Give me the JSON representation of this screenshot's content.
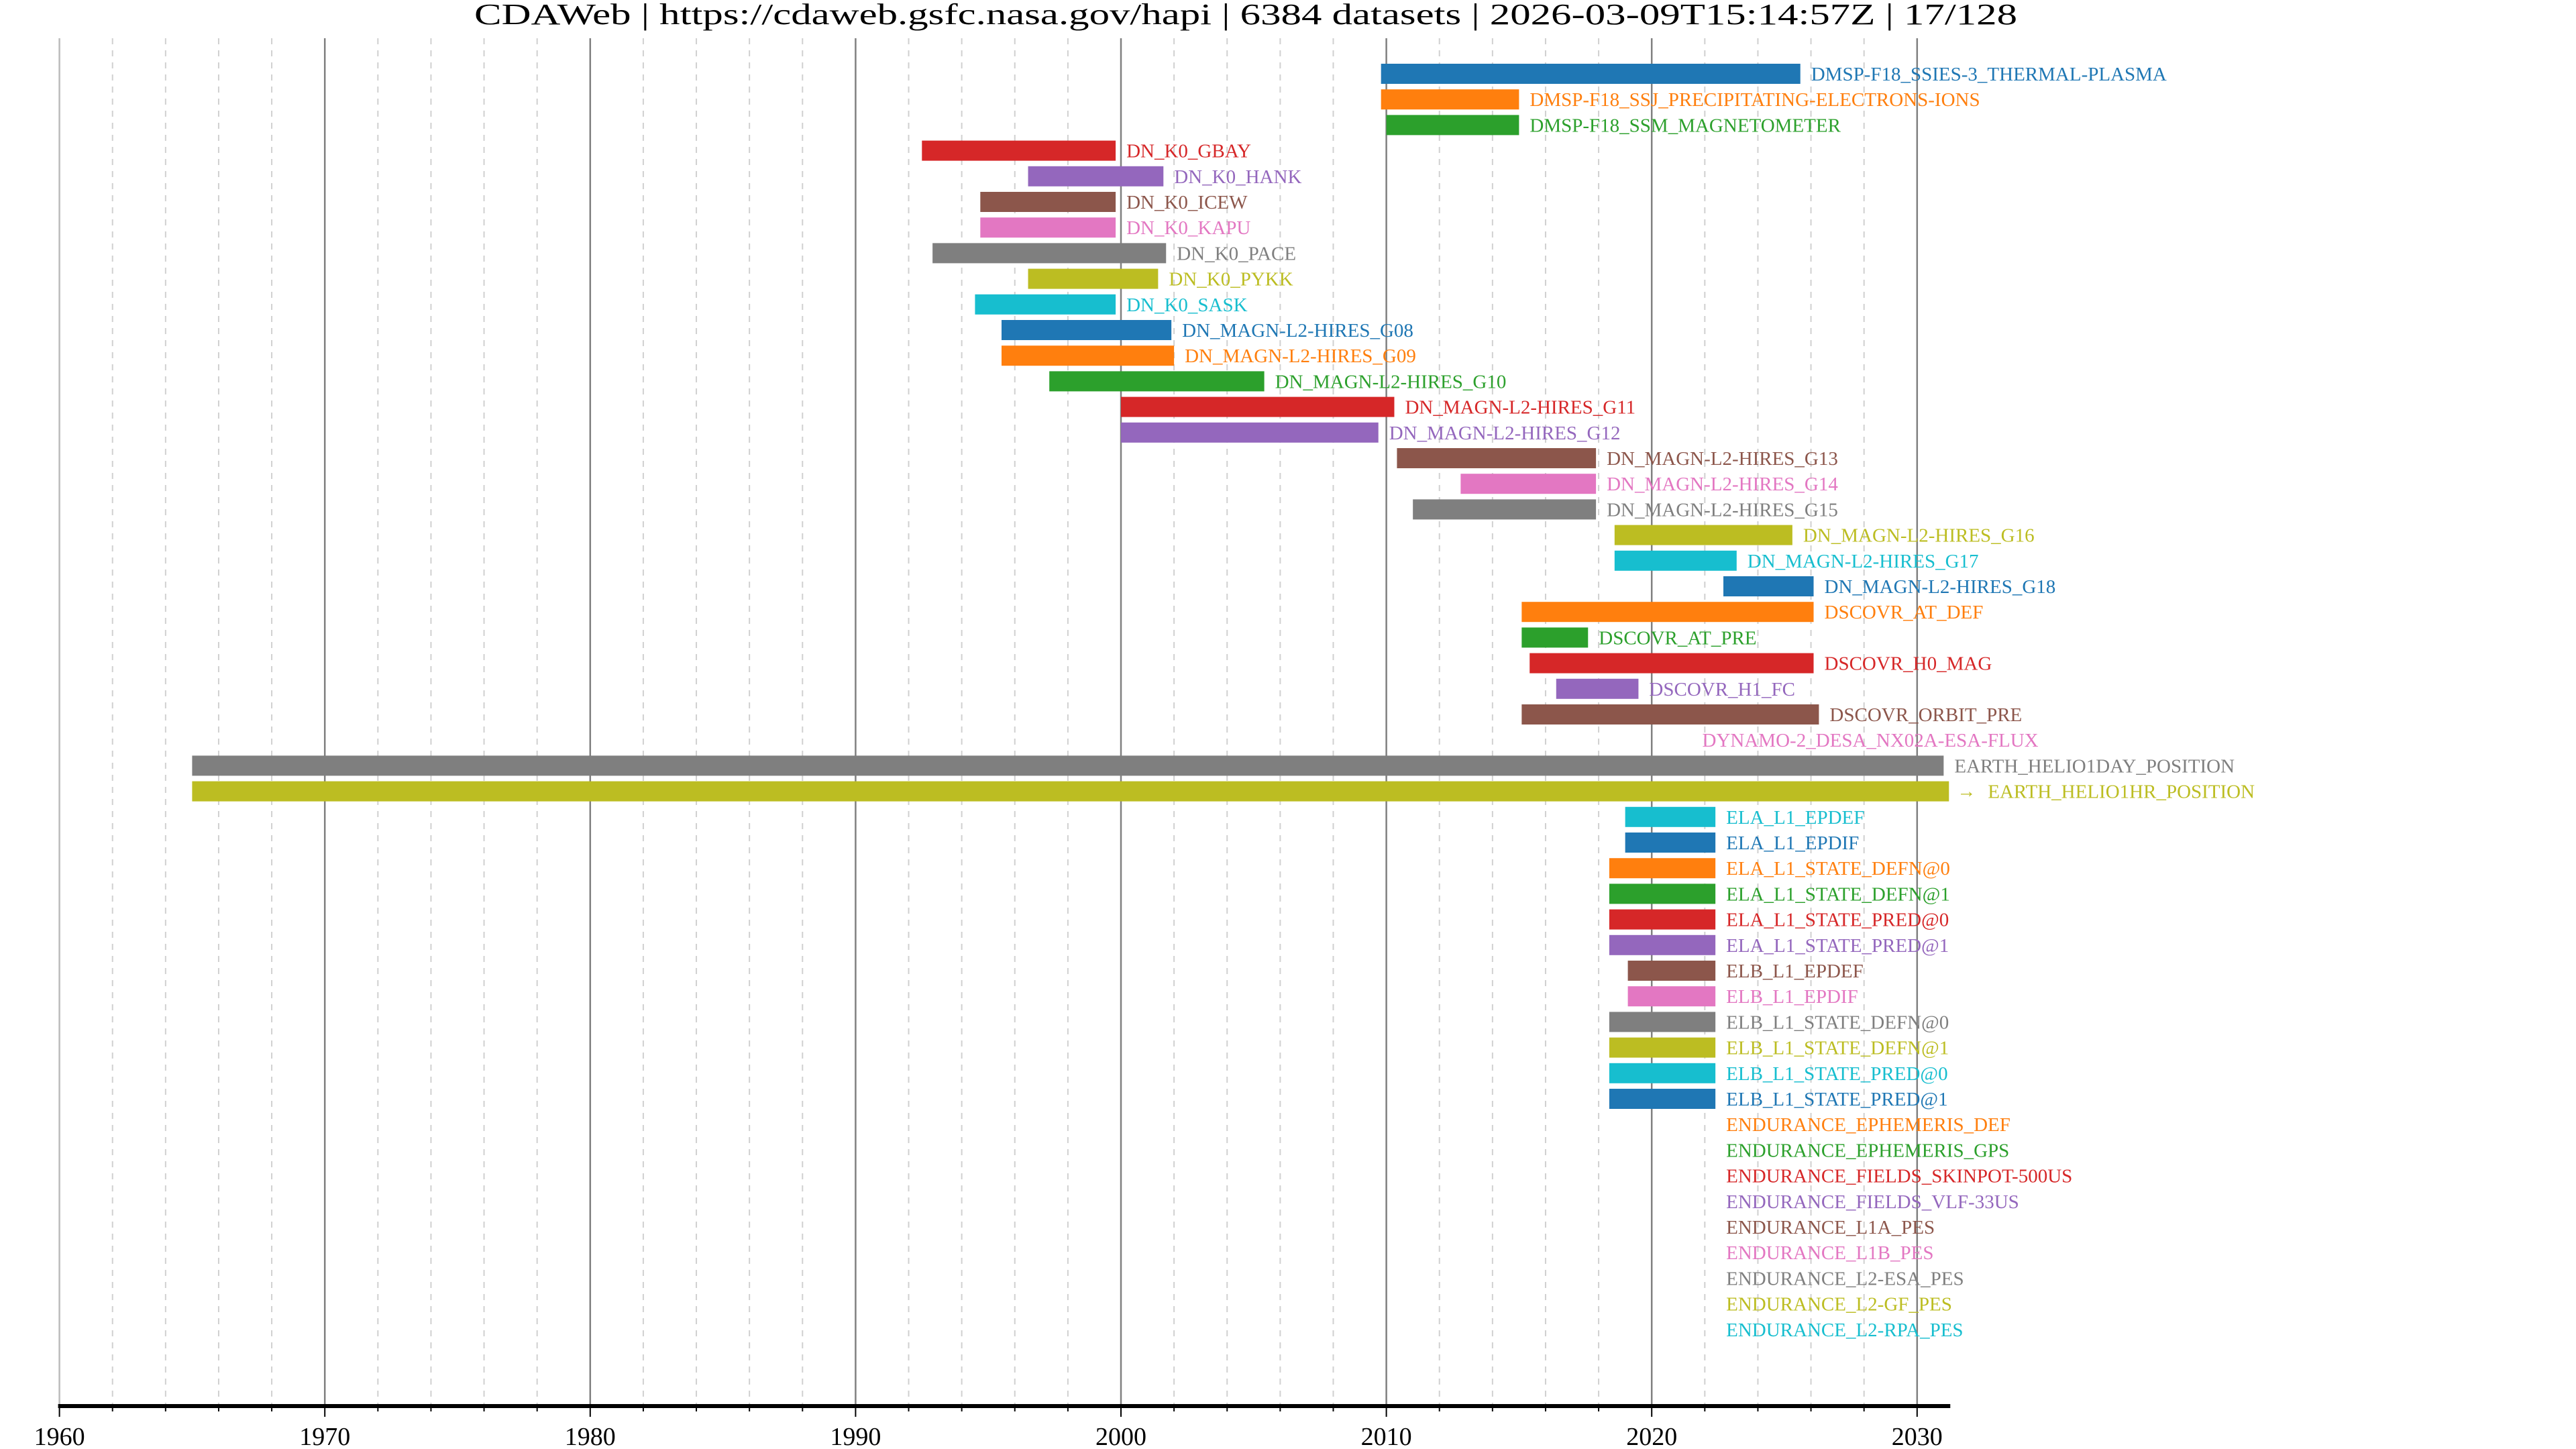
{
  "title": "CDAWeb | https://cdaweb.gsfc.nasa.gov/hapi | 6384 datasets | 2026-03-09T15:14:57Z | 17/128",
  "chart_data": {
    "type": "bar",
    "orientation": "horizontal-timeline",
    "xlim": [
      1960,
      2031.3
    ],
    "x_ticks": [
      "1960",
      "1970",
      "1980",
      "1990",
      "2000",
      "2010",
      "2020",
      "2030"
    ],
    "x_tick_values": [
      1960,
      1970,
      1980,
      1990,
      2000,
      2010,
      2020,
      2030
    ],
    "grid": {
      "major_every_years": 10,
      "minor_every_years": 2,
      "minor_style": "dashed"
    },
    "palette": [
      "#1f77b4",
      "#ff7f0e",
      "#2ca02c",
      "#d62728",
      "#9467bd",
      "#8c564b",
      "#e377c2",
      "#7f7f7f",
      "#bcbd22",
      "#17becf"
    ],
    "overflow_marker_icon": "arrow-right",
    "series": [
      {
        "name": "DMSP-F18_SSIES-3_THERMAL-PLASMA",
        "start": 2009.8,
        "end": 2025.6
      },
      {
        "name": "DMSP-F18_SSJ_PRECIPITATING-ELECTRONS-IONS",
        "start": 2009.8,
        "end": 2015.0
      },
      {
        "name": "DMSP-F18_SSM_MAGNETOMETER",
        "start": 2010.0,
        "end": 2015.0
      },
      {
        "name": "DN_K0_GBAY",
        "start": 1992.5,
        "end": 1999.8
      },
      {
        "name": "DN_K0_HANK",
        "start": 1996.5,
        "end": 2001.6
      },
      {
        "name": "DN_K0_ICEW",
        "start": 1994.7,
        "end": 1999.8
      },
      {
        "name": "DN_K0_KAPU",
        "start": 1994.7,
        "end": 1999.8
      },
      {
        "name": "DN_K0_PACE",
        "start": 1992.9,
        "end": 2001.7
      },
      {
        "name": "DN_K0_PYKK",
        "start": 1996.5,
        "end": 2001.4
      },
      {
        "name": "DN_K0_SASK",
        "start": 1994.5,
        "end": 1999.8
      },
      {
        "name": "DN_MAGN-L2-HIRES_G08",
        "start": 1995.5,
        "end": 2001.9
      },
      {
        "name": "DN_MAGN-L2-HIRES_G09",
        "start": 1995.5,
        "end": 2002.0
      },
      {
        "name": "DN_MAGN-L2-HIRES_G10",
        "start": 1997.3,
        "end": 2005.4
      },
      {
        "name": "DN_MAGN-L2-HIRES_G11",
        "start": 2000.0,
        "end": 2010.3
      },
      {
        "name": "DN_MAGN-L2-HIRES_G12",
        "start": 2000.0,
        "end": 2009.7
      },
      {
        "name": "DN_MAGN-L2-HIRES_G13",
        "start": 2010.4,
        "end": 2017.9
      },
      {
        "name": "DN_MAGN-L2-HIRES_G14",
        "start": 2012.8,
        "end": 2017.9
      },
      {
        "name": "DN_MAGN-L2-HIRES_G15",
        "start": 2011.0,
        "end": 2017.9
      },
      {
        "name": "DN_MAGN-L2-HIRES_G16",
        "start": 2018.6,
        "end": 2025.3
      },
      {
        "name": "DN_MAGN-L2-HIRES_G17",
        "start": 2018.6,
        "end": 2023.2
      },
      {
        "name": "DN_MAGN-L2-HIRES_G18",
        "start": 2022.7,
        "end": 2026.1
      },
      {
        "name": "DSCOVR_AT_DEF",
        "start": 2015.1,
        "end": 2026.1
      },
      {
        "name": "DSCOVR_AT_PRE",
        "start": 2015.1,
        "end": 2017.6
      },
      {
        "name": "DSCOVR_H0_MAG",
        "start": 2015.4,
        "end": 2026.1
      },
      {
        "name": "DSCOVR_H1_FC",
        "start": 2016.4,
        "end": 2019.5
      },
      {
        "name": "DSCOVR_ORBIT_PRE",
        "start": 2015.1,
        "end": 2026.3
      },
      {
        "name": "DYNAMO-2_DESA_NX02A-ESA-FLUX",
        "start": 2021.5,
        "end": 2021.5
      },
      {
        "name": "EARTH_HELIO1DAY_POSITION",
        "start": 1965.0,
        "end": 2031.0
      },
      {
        "name": "EARTH_HELIO1HR_POSITION",
        "start": 1965.0,
        "end": 2031.2,
        "extends_beyond_axis": true
      },
      {
        "name": "ELA_L1_EPDEF",
        "start": 2019.0,
        "end": 2022.4
      },
      {
        "name": "ELA_L1_EPDIF",
        "start": 2019.0,
        "end": 2022.4
      },
      {
        "name": "ELA_L1_STATE_DEFN@0",
        "start": 2018.4,
        "end": 2022.4
      },
      {
        "name": "ELA_L1_STATE_DEFN@1",
        "start": 2018.4,
        "end": 2022.4
      },
      {
        "name": "ELA_L1_STATE_PRED@0",
        "start": 2018.4,
        "end": 2022.4
      },
      {
        "name": "ELA_L1_STATE_PRED@1",
        "start": 2018.4,
        "end": 2022.4
      },
      {
        "name": "ELB_L1_EPDEF",
        "start": 2019.1,
        "end": 2022.4
      },
      {
        "name": "ELB_L1_EPDIF",
        "start": 2019.1,
        "end": 2022.4
      },
      {
        "name": "ELB_L1_STATE_DEFN@0",
        "start": 2018.4,
        "end": 2022.4
      },
      {
        "name": "ELB_L1_STATE_DEFN@1",
        "start": 2018.4,
        "end": 2022.4
      },
      {
        "name": "ELB_L1_STATE_PRED@0",
        "start": 2018.4,
        "end": 2022.4
      },
      {
        "name": "ELB_L1_STATE_PRED@1",
        "start": 2018.4,
        "end": 2022.4
      },
      {
        "name": "ENDURANCE_EPHEMERIS_DEF",
        "start": 2022.4,
        "end": 2022.4
      },
      {
        "name": "ENDURANCE_EPHEMERIS_GPS",
        "start": 2022.4,
        "end": 2022.4
      },
      {
        "name": "ENDURANCE_FIELDS_SKINPOT-500US",
        "start": 2022.4,
        "end": 2022.4
      },
      {
        "name": "ENDURANCE_FIELDS_VLF-33US",
        "start": 2022.4,
        "end": 2022.4
      },
      {
        "name": "ENDURANCE_L1A_PES",
        "start": 2022.4,
        "end": 2022.4
      },
      {
        "name": "ENDURANCE_L1B_PES",
        "start": 2022.4,
        "end": 2022.4
      },
      {
        "name": "ENDURANCE_L2-ESA_PES",
        "start": 2022.4,
        "end": 2022.4
      },
      {
        "name": "ENDURANCE_L2-GF_PES",
        "start": 2022.4,
        "end": 2022.4
      },
      {
        "name": "ENDURANCE_L2-RPA_PES",
        "start": 2022.4,
        "end": 2022.4
      }
    ]
  }
}
